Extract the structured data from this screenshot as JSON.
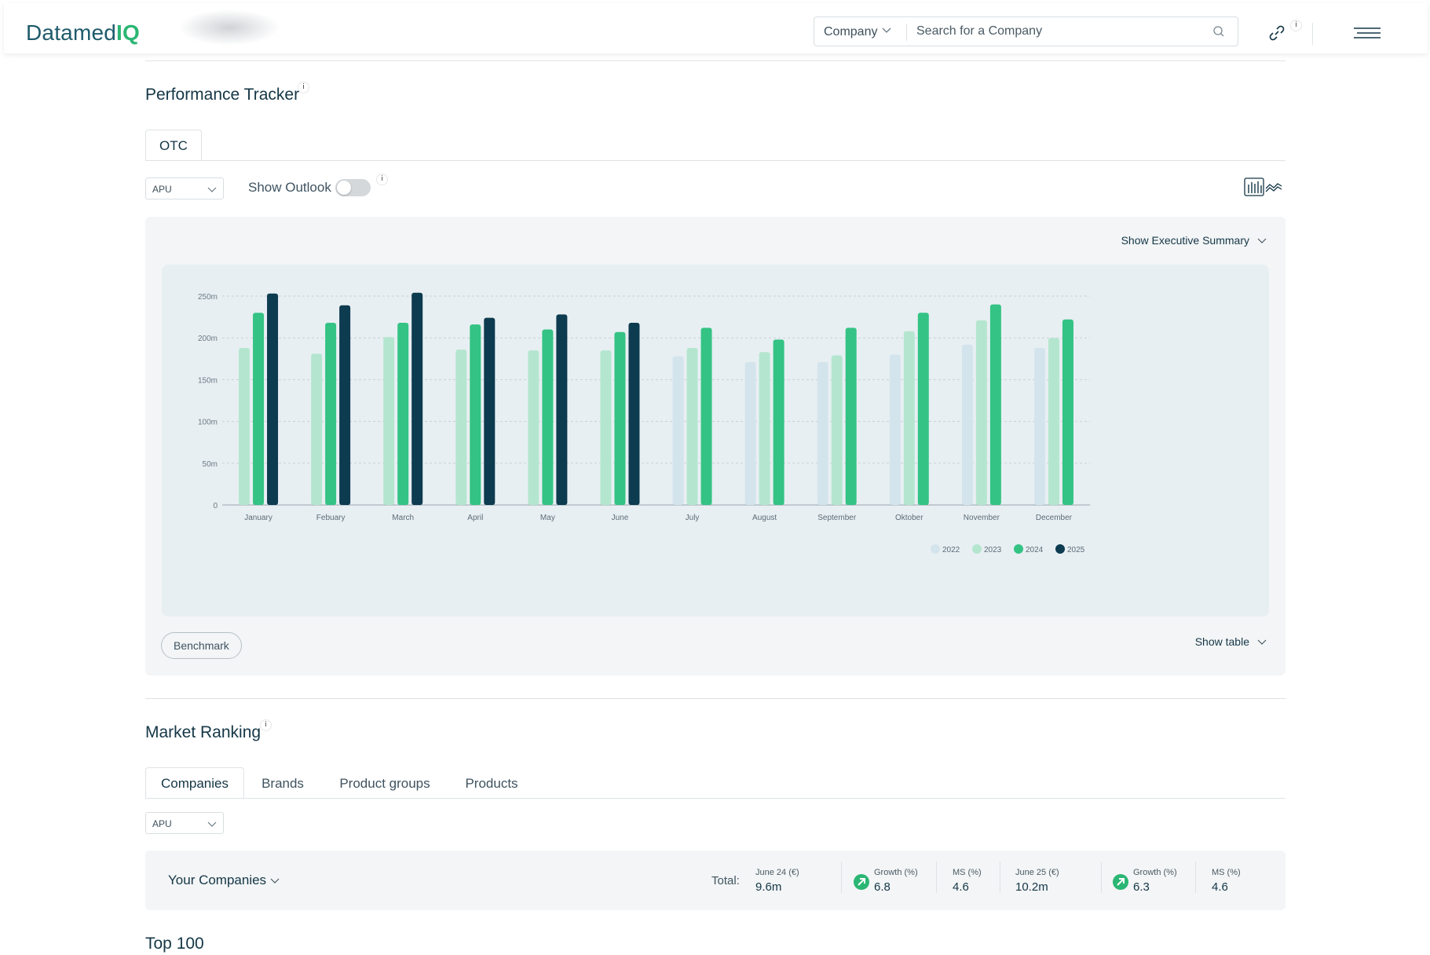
{
  "header": {
    "logo_text": "Datamed",
    "logo_accent": "IQ",
    "search_type": "Company",
    "search_placeholder": "Search for a Company"
  },
  "performance": {
    "title": "Performance Tracker",
    "tabs": [
      "OTC"
    ],
    "metric_select": "APU",
    "toggle_label": "Show Outlook",
    "toggle_on": false,
    "exec_summary": "Show Executive Summary",
    "benchmark": "Benchmark",
    "show_table": "Show table"
  },
  "chart_data": {
    "type": "bar",
    "categories": [
      "January",
      "Febuary",
      "March",
      "April",
      "May",
      "June",
      "July",
      "August",
      "September",
      "Oktober",
      "November",
      "December"
    ],
    "series": [
      {
        "name": "2022",
        "color": "#d4e4ec",
        "values": [
          null,
          null,
          null,
          null,
          null,
          null,
          178,
          171,
          171,
          180,
          192,
          188
        ]
      },
      {
        "name": "2023",
        "color": "#b4e6cf",
        "values": [
          188,
          181,
          201,
          186,
          185,
          185,
          188,
          183,
          179,
          208,
          221,
          200
        ]
      },
      {
        "name": "2024",
        "color": "#34c384",
        "values": [
          230,
          218,
          218,
          216,
          210,
          207,
          212,
          198,
          212,
          230,
          240,
          222
        ]
      },
      {
        "name": "2025",
        "color": "#0d3b4f",
        "values": [
          253,
          239,
          254,
          224,
          228,
          218,
          null,
          null,
          null,
          null,
          null,
          null
        ]
      }
    ],
    "yticks": [
      "0",
      "50m",
      "100m",
      "150m",
      "200m",
      "250m"
    ],
    "ylim": [
      0,
      250
    ],
    "grid": true,
    "legend_position": "bottom-right"
  },
  "ranking": {
    "title": "Market Ranking",
    "tabs": [
      "Companies",
      "Brands",
      "Product groups",
      "Products"
    ],
    "metric_select": "APU",
    "your_companies": "Your Companies",
    "total_label": "Total:",
    "stats": [
      {
        "label": "June 24 (€)",
        "value": "9.6m"
      },
      {
        "label": "Growth (%)",
        "value": "6.8"
      },
      {
        "label": "MS (%)",
        "value": "4.6"
      },
      {
        "label": "June 25 (€)",
        "value": "10.2m"
      },
      {
        "label": "Growth (%)",
        "value": "6.3"
      },
      {
        "label": "MS (%)",
        "value": "4.6"
      }
    ]
  },
  "top100": {
    "title": "Top 100"
  },
  "info_glyph": "i",
  "colors": {
    "accent": "#2bb673",
    "dark": "#0d3b4f",
    "panel": "#f3f5f6",
    "chart_bg": "#e8eff3"
  }
}
